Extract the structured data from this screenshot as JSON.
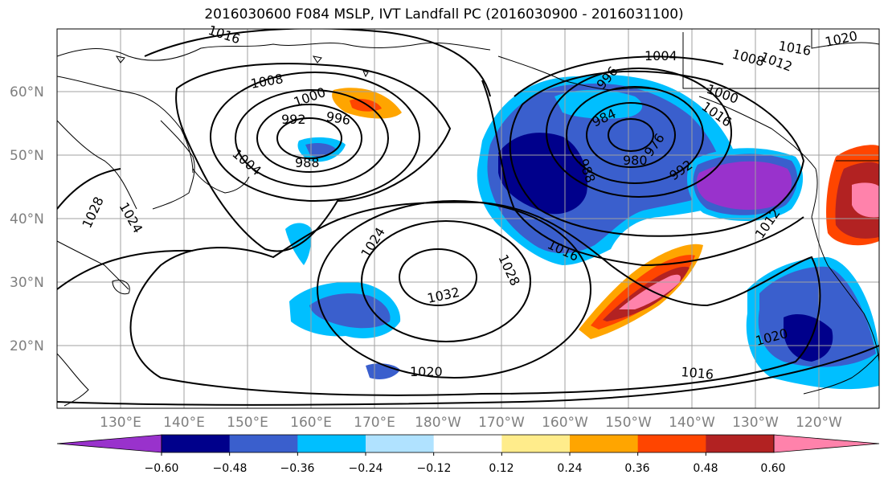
{
  "title": "2016030600 F084 MSLP, IVT Landfall PC (2016030900 - 2016031100)",
  "lat_labels": [
    "60°N",
    "50°N",
    "40°N",
    "30°N",
    "20°N"
  ],
  "lon_labels": [
    "130°E",
    "140°E",
    "150°E",
    "160°E",
    "170°E",
    "180°W",
    "170°W",
    "160°W",
    "150°W",
    "140°W",
    "130°W",
    "120°W"
  ],
  "colorbar": {
    "tick_labels": [
      "−0.60",
      "−0.48",
      "−0.36",
      "−0.24",
      "−0.12",
      "0.12",
      "0.24",
      "0.36",
      "0.48",
      "0.60"
    ],
    "colors": [
      "#9932cc",
      "#00008b",
      "#3a5fcd",
      "#00bfff",
      "#b0e2ff",
      "#ffffff",
      "#ffec8b",
      "#ffa500",
      "#ff4500",
      "#b22222",
      "#ff82ab"
    ]
  },
  "isobar_labels": [
    "1016",
    "1008",
    "1000",
    "996",
    "992",
    "988",
    "1004",
    "1024",
    "1028",
    "1032",
    "1020",
    "1016",
    "1004",
    "996",
    "984",
    "988",
    "980",
    "976",
    "992",
    "1000",
    "1012",
    "1016",
    "1020",
    "1016",
    "1012",
    "1008",
    "1020",
    "1028",
    "1024",
    "1016"
  ],
  "colors": {
    "contour": "#000000",
    "grid": "#a0a0a0",
    "coast": "#000000"
  }
}
